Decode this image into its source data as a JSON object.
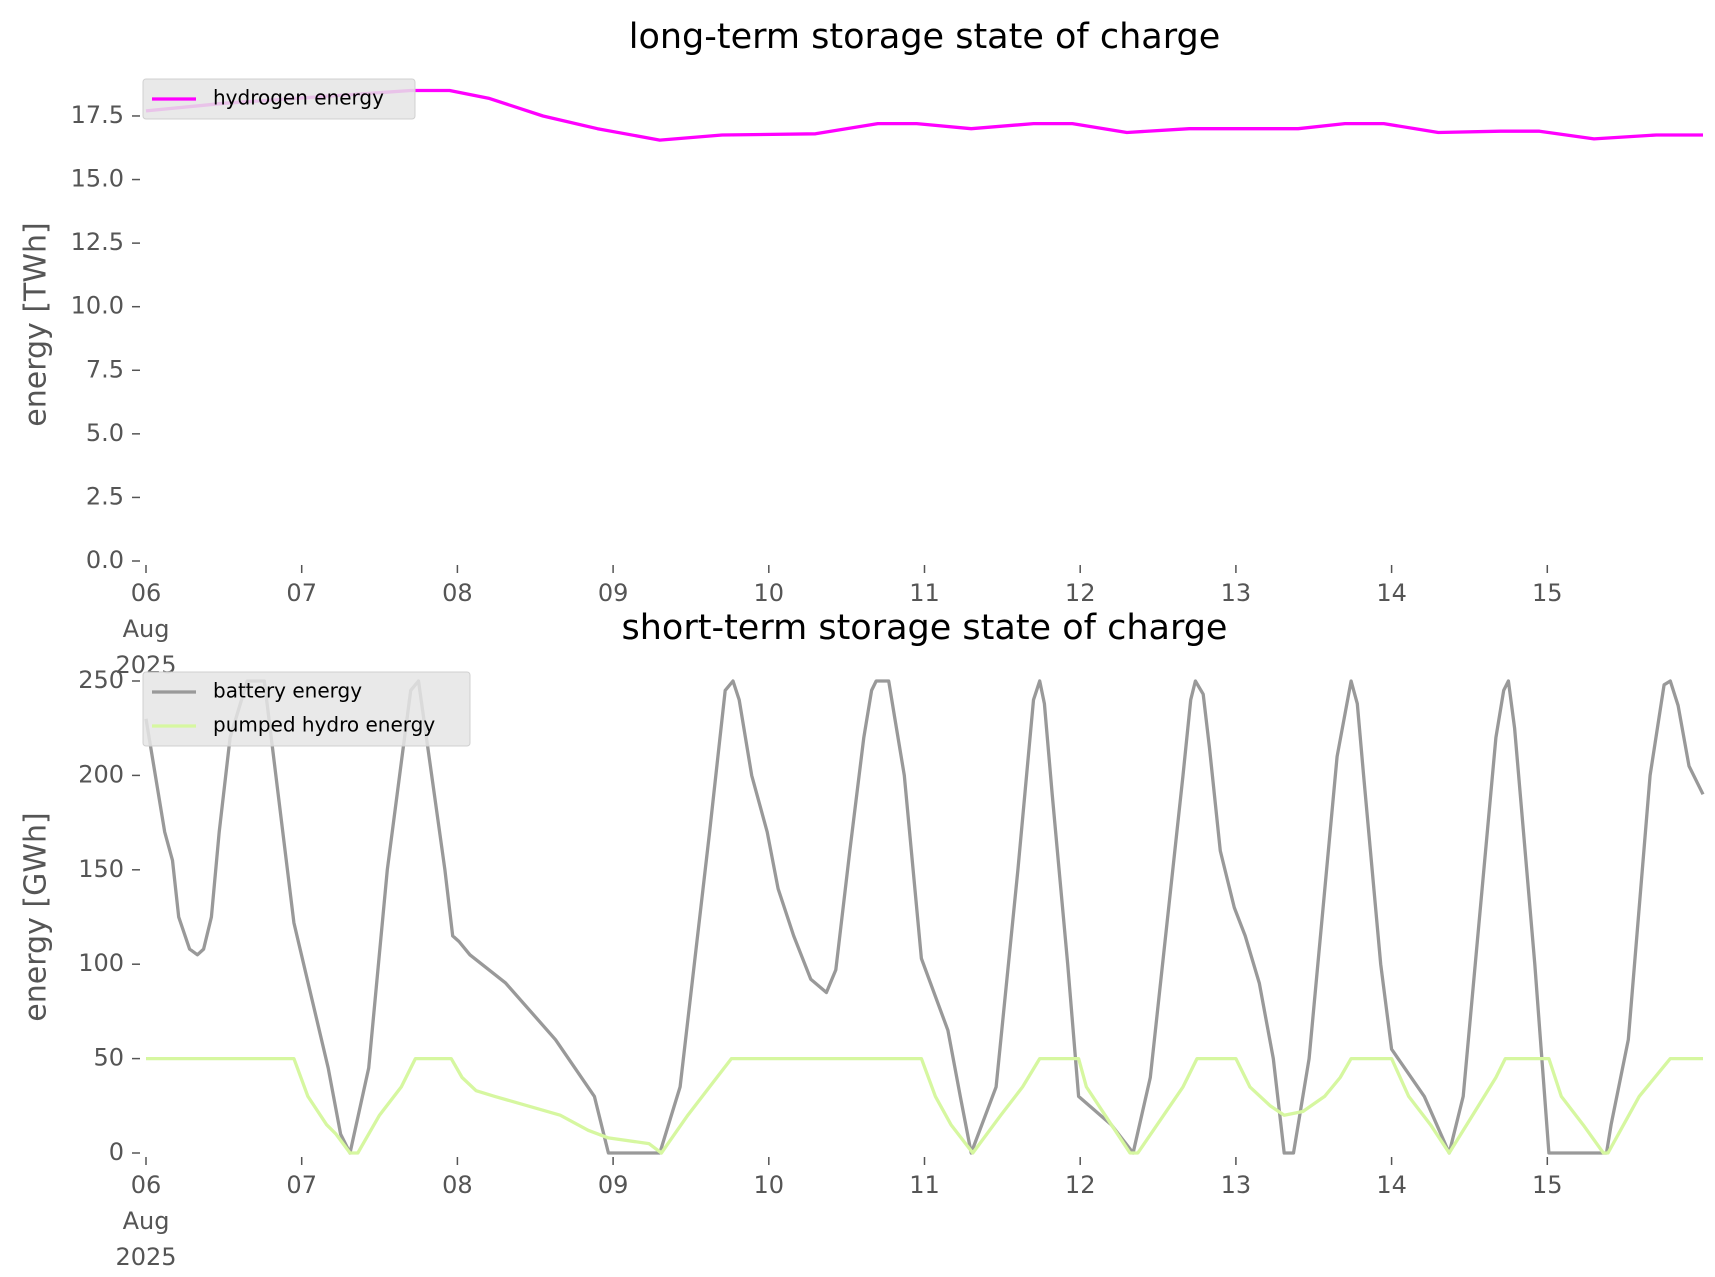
{
  "chart_data": [
    {
      "type": "line",
      "title": "long-term storage state of charge",
      "ylabel": "energy [TWh]",
      "xlim": [
        6,
        16
      ],
      "xticks": [
        {
          "value": 6,
          "label": "06\nAug\n2025"
        },
        {
          "value": 7,
          "label": "07"
        },
        {
          "value": 8,
          "label": "08"
        },
        {
          "value": 9,
          "label": "09"
        },
        {
          "value": 10,
          "label": "10"
        },
        {
          "value": 11,
          "label": "11"
        },
        {
          "value": 12,
          "label": "12"
        },
        {
          "value": 13,
          "label": "13"
        },
        {
          "value": 14,
          "label": "14"
        },
        {
          "value": 15,
          "label": "15"
        }
      ],
      "ylim": [
        0,
        18.6
      ],
      "yticks": [
        {
          "value": 0,
          "label": "0.0"
        },
        2.5,
        {
          "value": 5,
          "label": "5.0"
        },
        7.5,
        {
          "value": 10,
          "label": "10.0"
        },
        12.5,
        {
          "value": 15,
          "label": "15.0"
        },
        17.5
      ],
      "legend": "upper left",
      "series": [
        {
          "name": "hydrogen energy",
          "color": "#ff00ff",
          "x": [
            6.0,
            6.5,
            7.7,
            7.95,
            8.2,
            8.55,
            8.9,
            9.3,
            9.7,
            10.3,
            10.7,
            10.95,
            11.3,
            11.7,
            11.95,
            12.3,
            12.7,
            13.4,
            13.7,
            13.95,
            14.3,
            14.7,
            14.95,
            15.3,
            15.7,
            16.0
          ],
          "values": [
            17.7,
            18.0,
            18.5,
            18.5,
            18.2,
            17.5,
            17.0,
            16.55,
            16.75,
            16.8,
            17.2,
            17.2,
            17.0,
            17.2,
            17.2,
            16.85,
            17.0,
            17.0,
            17.2,
            17.2,
            16.85,
            16.9,
            16.9,
            16.6,
            16.75,
            16.75
          ]
        }
      ]
    },
    {
      "type": "line",
      "title": "short-term storage state of charge",
      "ylabel": "energy [GWh]",
      "xlim": [
        6,
        16
      ],
      "xticks": [
        {
          "value": 6,
          "label": "06\nAug\n2025"
        },
        {
          "value": 7,
          "label": "07"
        },
        {
          "value": 8,
          "label": "08"
        },
        {
          "value": 9,
          "label": "09"
        },
        {
          "value": 10,
          "label": "10"
        },
        {
          "value": 11,
          "label": "11"
        },
        {
          "value": 12,
          "label": "12"
        },
        {
          "value": 13,
          "label": "13"
        },
        {
          "value": 14,
          "label": "14"
        },
        {
          "value": 15,
          "label": "15"
        }
      ],
      "ylim": [
        0,
        250
      ],
      "yticks": [
        0,
        50,
        100,
        150,
        200,
        250
      ],
      "legend": "upper left",
      "series": [
        {
          "name": "battery energy",
          "color": "#999999",
          "x": [
            6.0,
            6.12,
            6.17,
            6.21,
            6.28,
            6.33,
            6.37,
            6.42,
            6.47,
            6.54,
            6.65,
            6.76,
            6.95,
            7.07,
            7.17,
            7.25,
            7.31,
            7.43,
            7.55,
            7.7,
            7.75,
            7.92,
            7.97,
            8.01,
            8.08,
            8.31,
            8.63,
            8.88,
            8.97,
            9.3,
            9.43,
            9.62,
            9.72,
            9.77,
            9.81,
            9.89,
            9.99,
            10.06,
            10.16,
            10.27,
            10.37,
            10.43,
            10.52,
            10.61,
            10.66,
            10.69,
            10.77,
            10.81,
            10.87,
            10.98,
            11.15,
            11.23,
            11.3,
            11.46,
            11.6,
            11.7,
            11.74,
            11.77,
            11.82,
            11.92,
            11.99,
            12.2,
            12.34,
            12.45,
            12.66,
            12.71,
            12.74,
            12.79,
            12.83,
            12.9,
            12.99,
            13.06,
            13.15,
            13.24,
            13.31,
            13.37,
            13.47,
            13.65,
            13.74,
            13.78,
            13.82,
            13.93,
            14.0,
            14.21,
            14.37,
            14.46,
            14.67,
            14.72,
            14.75,
            14.79,
            14.92,
            15.01,
            15.38,
            15.41,
            15.52,
            15.66,
            15.75,
            15.79,
            15.84,
            15.91,
            16.0
          ],
          "values": [
            230,
            170,
            155,
            125,
            108,
            105,
            108,
            125,
            170,
            220,
            250,
            250,
            122,
            80,
            45,
            10,
            0,
            45,
            150,
            245,
            250,
            150,
            115,
            112,
            105,
            90,
            60,
            30,
            0,
            0,
            35,
            170,
            245,
            250,
            240,
            200,
            170,
            140,
            115,
            92,
            85,
            97,
            160,
            220,
            245,
            250,
            250,
            230,
            200,
            103,
            65,
            30,
            0,
            35,
            150,
            240,
            250,
            238,
            190,
            100,
            30,
            15,
            0,
            40,
            200,
            240,
            250,
            243,
            215,
            160,
            130,
            115,
            90,
            50,
            0,
            0,
            50,
            210,
            250,
            238,
            200,
            100,
            55,
            30,
            0,
            30,
            220,
            245,
            250,
            225,
            100,
            0,
            0,
            15,
            60,
            200,
            248,
            250,
            237,
            205,
            190
          ]
        },
        {
          "name": "pumped hydro energy",
          "color": "#d6f7a0",
          "x": [
            6.0,
            6.95,
            7.04,
            7.16,
            7.22,
            7.31,
            7.36,
            7.5,
            7.64,
            7.73,
            7.96,
            8.03,
            8.12,
            8.24,
            8.66,
            8.84,
            8.97,
            9.23,
            9.31,
            9.48,
            9.62,
            9.76,
            10.98,
            11.07,
            11.17,
            11.31,
            11.49,
            11.63,
            11.74,
            11.99,
            12.04,
            12.16,
            12.32,
            12.37,
            12.66,
            12.75,
            13.0,
            13.09,
            13.22,
            13.31,
            13.43,
            13.57,
            13.67,
            13.74,
            14.0,
            14.11,
            14.25,
            14.37,
            14.52,
            14.67,
            14.73,
            15.01,
            15.09,
            15.23,
            15.36,
            15.39,
            15.59,
            15.79,
            16.0
          ],
          "values": [
            50,
            50,
            30,
            15,
            10,
            0,
            0,
            20,
            35,
            50,
            50,
            40,
            33,
            30,
            20,
            12,
            8,
            5,
            0,
            20,
            35,
            50,
            50,
            30,
            15,
            0,
            20,
            35,
            50,
            50,
            35,
            20,
            0,
            0,
            35,
            50,
            50,
            35,
            25,
            20,
            22,
            30,
            40,
            50,
            50,
            30,
            15,
            0,
            20,
            40,
            50,
            50,
            30,
            15,
            0,
            0,
            30,
            50,
            50
          ]
        }
      ]
    }
  ]
}
